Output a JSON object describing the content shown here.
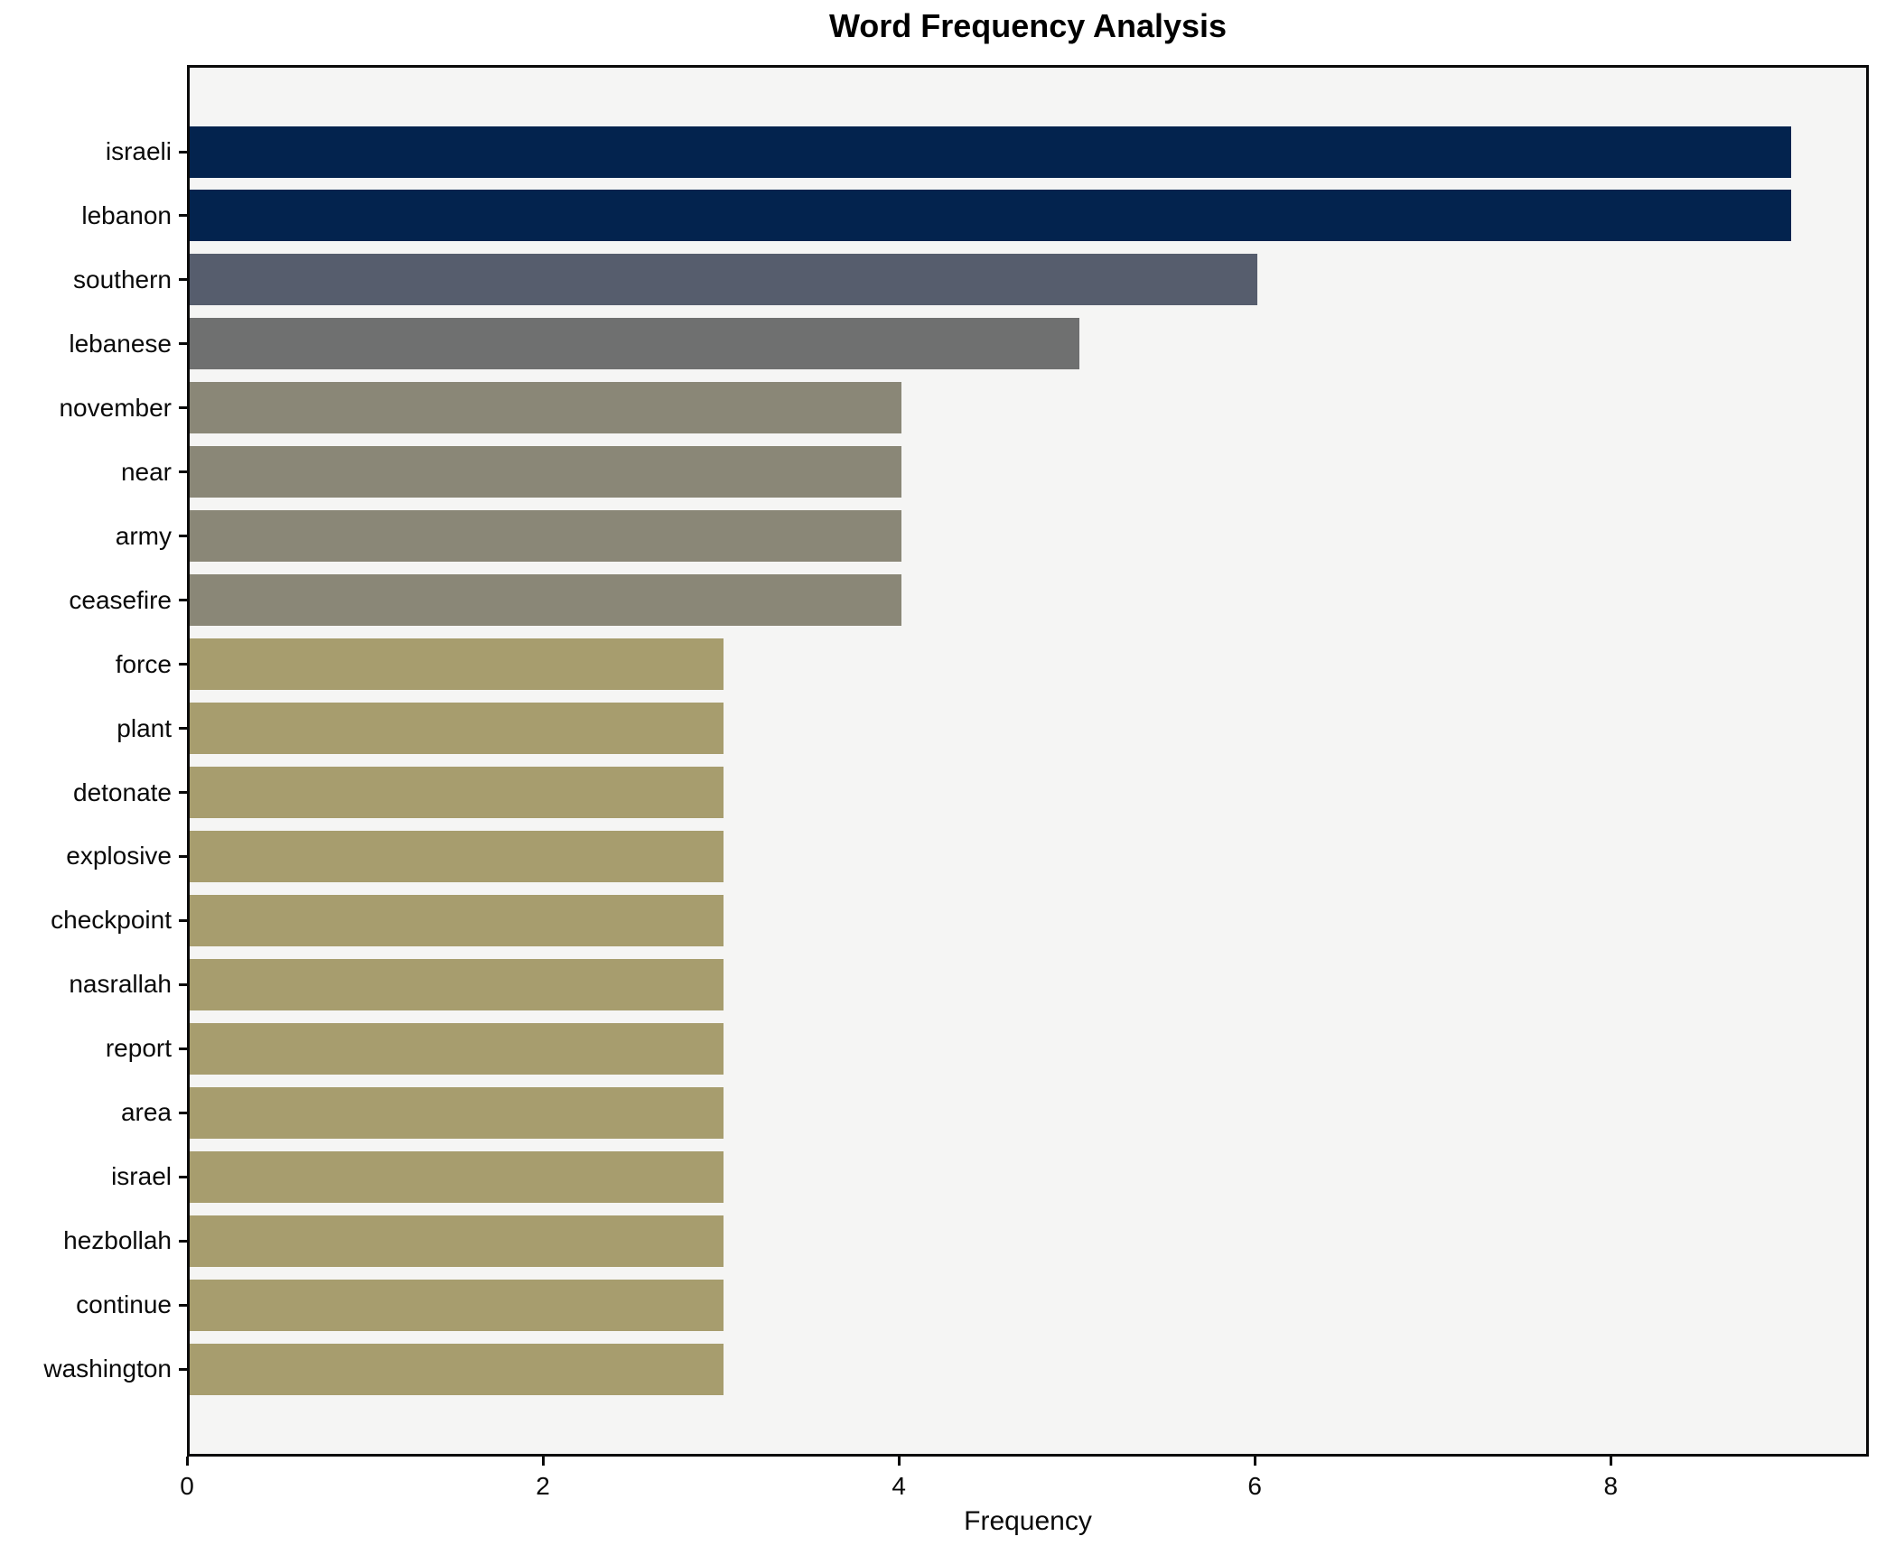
{
  "chart_data": {
    "type": "bar",
    "orientation": "horizontal",
    "title": "Word Frequency Analysis",
    "xlabel": "Frequency",
    "ylabel": "",
    "categories": [
      "israeli",
      "lebanon",
      "southern",
      "lebanese",
      "november",
      "near",
      "army",
      "ceasefire",
      "force",
      "plant",
      "detonate",
      "explosive",
      "checkpoint",
      "nasrallah",
      "report",
      "area",
      "israel",
      "hezbollah",
      "continue",
      "washington"
    ],
    "values": [
      9,
      9,
      6,
      5,
      4,
      4,
      4,
      4,
      3,
      3,
      3,
      3,
      3,
      3,
      3,
      3,
      3,
      3,
      3,
      3
    ],
    "bar_colors": [
      "#03234e",
      "#03234e",
      "#565d6d",
      "#6f7070",
      "#8a8777",
      "#8a8777",
      "#8a8777",
      "#8a8777",
      "#a79d6e",
      "#a79d6e",
      "#a79d6e",
      "#a79d6e",
      "#a79d6e",
      "#a79d6e",
      "#a79d6e",
      "#a79d6e",
      "#a79d6e",
      "#a79d6e",
      "#a79d6e",
      "#a79d6e"
    ],
    "xticks": [
      0,
      2,
      4,
      6,
      8
    ],
    "xlim": [
      0,
      9.45
    ],
    "grid": false,
    "legend": false,
    "plot_background": "#f5f5f4",
    "figure_background": "#ffffff",
    "spine_color": "#0a0a0a"
  }
}
